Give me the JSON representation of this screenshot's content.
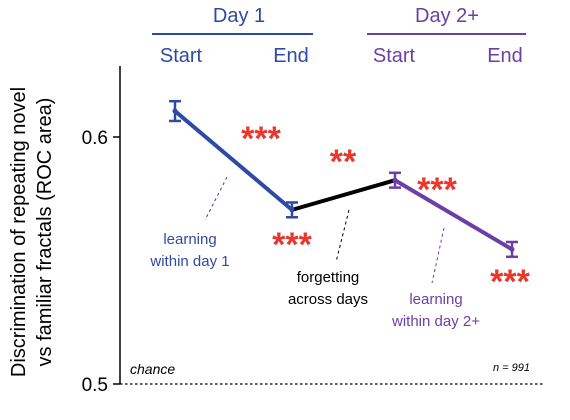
{
  "chart_data": {
    "type": "line",
    "ylabel_lines": [
      "Discrimination of repeating novel",
      "vs familiar fractals (ROC area)"
    ],
    "ylim": [
      0.5,
      0.62
    ],
    "yticks": [
      "0.5",
      "0.6"
    ],
    "groups": [
      {
        "label": "Day 1",
        "color": "#2e4aa5"
      },
      {
        "label": "Day 2+",
        "color": "#6b3fa5"
      }
    ],
    "categories": [
      "Start",
      "End",
      "Start",
      "End"
    ],
    "points": [
      {
        "value": 0.6105,
        "err": 0.004
      },
      {
        "value": 0.5705,
        "err": 0.003
      },
      {
        "value": 0.5825,
        "err": 0.003
      },
      {
        "value": 0.5545,
        "err": 0.003
      }
    ],
    "segment_colors": [
      "#2e4aa5",
      "#000000",
      "#6b3fa5"
    ],
    "significance": [
      {
        "text": "***",
        "color": "#e8382e"
      },
      {
        "text": "***",
        "color": "#e8382e"
      },
      {
        "text": "**",
        "color": "#e8382e"
      },
      {
        "text": "***",
        "color": "#e8382e"
      },
      {
        "text": "***",
        "color": "#e8382e"
      }
    ],
    "annotations": [
      {
        "lines": [
          "learning",
          "within day 1"
        ],
        "color": "#2e4aa5"
      },
      {
        "lines": [
          "forgetting",
          "across days"
        ],
        "color": "#000000"
      },
      {
        "lines": [
          "learning",
          "within day 2+"
        ],
        "color": "#6b3fa5"
      }
    ],
    "chance_label": "chance",
    "n_label": "n = 991",
    "grid": false,
    "legend": "none"
  }
}
